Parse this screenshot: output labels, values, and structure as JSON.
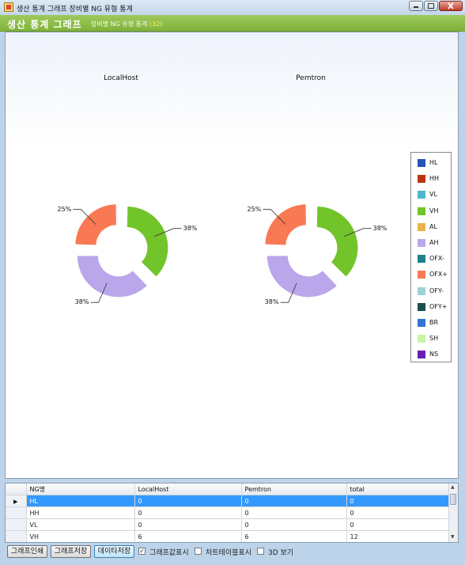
{
  "window": {
    "title": "생산 통계 그래프 장비별 NG 유형 통계"
  },
  "header": {
    "title": "생산 통계 그래프",
    "subtitle": "장비별 NG 유형 통계",
    "count": "(32)"
  },
  "colors": {
    "HL": "#2255b5",
    "HH": "#c0330a",
    "VL": "#4db8c8",
    "VH": "#72c42b",
    "AL": "#e8b44a",
    "AH": "#baa6ea",
    "OFX-": "#1f7f8a",
    "OFX+": "#f87954",
    "OFY-": "#9fd1d8",
    "OFY+": "#1a4d4d",
    "BR": "#2f74d6",
    "SH": "#c8f5a6",
    "NS": "#6a1fb0"
  },
  "chart_data": [
    {
      "type": "pie",
      "title": "LocalHost",
      "slices": [
        {
          "label": "VH",
          "percent": 38,
          "value": 6
        },
        {
          "label": "AH",
          "percent": 38,
          "value": 6
        },
        {
          "label": "OFX+",
          "percent": 25,
          "value": 4
        }
      ]
    },
    {
      "type": "pie",
      "title": "Pemtron",
      "slices": [
        {
          "label": "VH",
          "percent": 38,
          "value": 6
        },
        {
          "label": "AH",
          "percent": 38,
          "value": 6
        },
        {
          "label": "OFX+",
          "percent": 25,
          "value": 4
        }
      ]
    }
  ],
  "legend": [
    "HL",
    "HH",
    "VL",
    "VH",
    "AL",
    "AH",
    "OFX-",
    "OFX+",
    "OFY-",
    "OFY+",
    "BR",
    "SH",
    "NS"
  ],
  "grid": {
    "columns": [
      "NG명",
      "LocalHost",
      "Pemtron",
      "total"
    ],
    "rows": [
      [
        "HL",
        "0",
        "0",
        "0"
      ],
      [
        "HH",
        "0",
        "0",
        "0"
      ],
      [
        "VL",
        "0",
        "0",
        "0"
      ],
      [
        "VH",
        "6",
        "6",
        "12"
      ]
    ]
  },
  "toolbar": {
    "print_label": "그래프인쇄",
    "save_graph_label": "그래프저장",
    "save_data_label": "데이타저장",
    "show_values_label": "그래프값표시",
    "show_table_label": "차트테이블표시",
    "view_3d_label": "3D 보기",
    "show_values_checked": true,
    "show_table_checked": false,
    "view_3d_checked": false
  }
}
